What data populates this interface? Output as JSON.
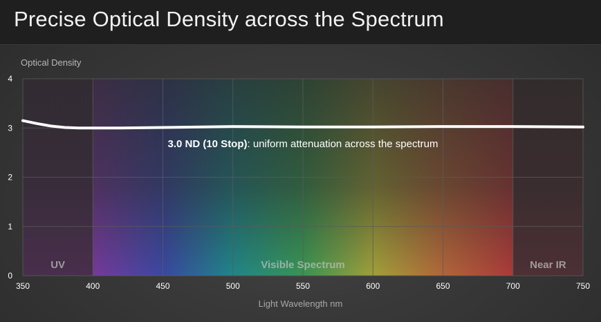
{
  "title": "Precise Optical Density across the Spectrum",
  "chart_data": {
    "type": "line",
    "title": "Precise Optical Density across the Spectrum",
    "xlabel": "Light Wavelength nm",
    "ylabel": "Optical Density",
    "xlim": [
      350,
      750
    ],
    "ylim": [
      0,
      4
    ],
    "x_ticks": [
      "350",
      "400",
      "450",
      "500",
      "550",
      "600",
      "650",
      "700",
      "750"
    ],
    "y_ticks": [
      "0",
      "1",
      "2",
      "3",
      "4"
    ],
    "grid": true,
    "regions": [
      {
        "label": "UV",
        "from": 350,
        "to": 400
      },
      {
        "label": "Visible Spectrum",
        "from": 400,
        "to": 700
      },
      {
        "label": "Near IR",
        "from": 700,
        "to": 750
      }
    ],
    "series": [
      {
        "name": "3.0 ND (10 Stop)",
        "x": [
          350,
          360,
          370,
          380,
          390,
          400,
          420,
          450,
          500,
          550,
          600,
          650,
          700,
          750
        ],
        "y": [
          3.15,
          3.09,
          3.04,
          3.01,
          3.0,
          3.0,
          3.0,
          3.01,
          3.03,
          3.02,
          3.02,
          3.03,
          3.03,
          3.02
        ]
      }
    ],
    "annotation": {
      "bold": "3.0 ND (10 Stop)",
      "text": ": uniform attenuation across the spectrum"
    },
    "colors": {
      "line": "#ffffff",
      "grid": "#5a5a5a",
      "axis_text": "#ffffff"
    }
  }
}
